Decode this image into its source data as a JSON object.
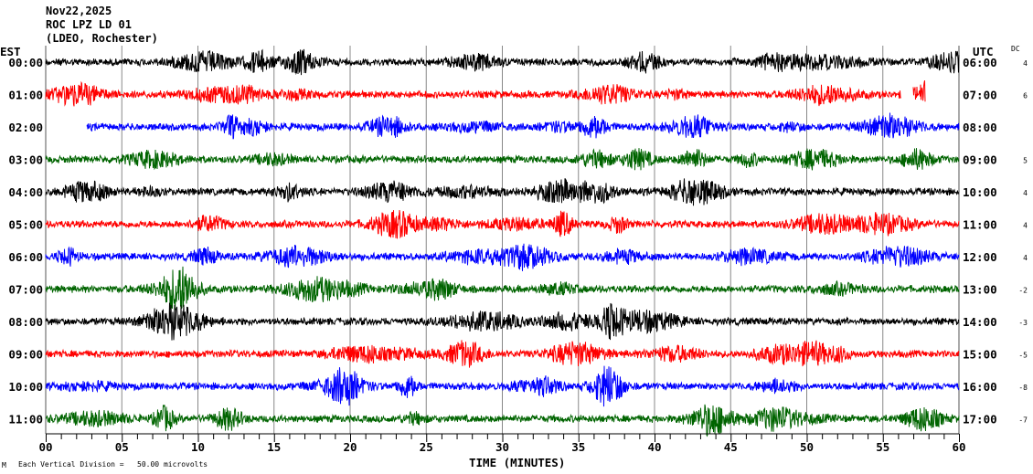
{
  "header": {
    "date": "Nov22,2025",
    "station": "ROC LPZ LD 01",
    "network": "(LDEO, Rochester)"
  },
  "left_timezone": "EST",
  "right_timezone": "UTC",
  "dc_header": "DC",
  "footer": {
    "mark": "M",
    "scale_note": "Each Vertical Division =   50.00 microvolts",
    "xlabel": "TIME (MINUTES)"
  },
  "chart_data": {
    "type": "line",
    "title": "",
    "xlabel": "TIME (MINUTES)",
    "xlim": [
      0,
      60
    ],
    "x_ticks": [
      "00",
      "05",
      "10",
      "15",
      "20",
      "25",
      "30",
      "35",
      "40",
      "45",
      "50",
      "55",
      "60"
    ],
    "minor_tick_step_minutes": 1,
    "grid": "vertical every 5 minutes",
    "colors": [
      "#000000",
      "#ff0000",
      "#0000ff",
      "#006400"
    ],
    "rows": [
      {
        "est": "00:00",
        "utc": "06:00",
        "dc": "4",
        "color": "#000000",
        "start": 0,
        "end": 60
      },
      {
        "est": "01:00",
        "utc": "07:00",
        "dc": "6",
        "color": "#ff0000",
        "start": 0,
        "end": 56.2,
        "extra_segment": [
          57,
          57.8
        ]
      },
      {
        "est": "02:00",
        "utc": "08:00",
        "dc": "",
        "color": "#0000ff",
        "start": 2.7,
        "end": 60
      },
      {
        "est": "03:00",
        "utc": "09:00",
        "dc": "5",
        "color": "#006400",
        "start": 0,
        "end": 60
      },
      {
        "est": "04:00",
        "utc": "10:00",
        "dc": "4",
        "color": "#000000",
        "start": 0,
        "end": 60
      },
      {
        "est": "05:00",
        "utc": "11:00",
        "dc": "4",
        "color": "#ff0000",
        "start": 0,
        "end": 60
      },
      {
        "est": "06:00",
        "utc": "12:00",
        "dc": "4",
        "color": "#0000ff",
        "start": 0,
        "end": 60
      },
      {
        "est": "07:00",
        "utc": "13:00",
        "dc": "-2",
        "color": "#006400",
        "start": 0,
        "end": 60
      },
      {
        "est": "08:00",
        "utc": "14:00",
        "dc": "-3",
        "color": "#000000",
        "start": 0,
        "end": 60
      },
      {
        "est": "09:00",
        "utc": "15:00",
        "dc": "-5",
        "color": "#ff0000",
        "start": 0,
        "end": 60
      },
      {
        "est": "10:00",
        "utc": "16:00",
        "dc": "-8",
        "color": "#0000ff",
        "start": 0,
        "end": 60
      },
      {
        "est": "11:00",
        "utc": "17:00",
        "dc": "-7",
        "color": "#006400",
        "start": 0,
        "end": 60
      }
    ]
  }
}
